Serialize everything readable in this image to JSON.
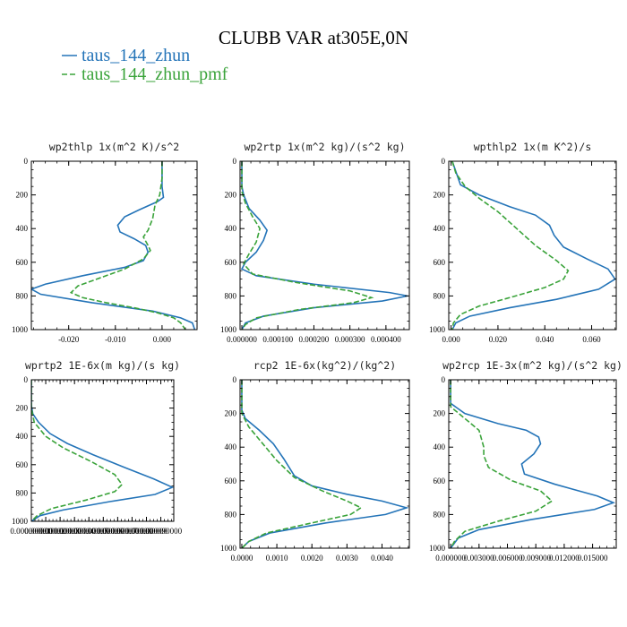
{
  "figure": {
    "title": "CLUBB VAR at305E,0N",
    "legend": [
      {
        "name": "taus_144_zhun",
        "color": "#2474b8"
      },
      {
        "name": "taus_144_zhun_pmf",
        "color": "#3aa33a"
      }
    ]
  },
  "chart_data": [
    {
      "type": "line",
      "title": "wp2thlp   1x(m^2 K)/s^2",
      "xlabel": "",
      "ylabel": "",
      "xlim": [
        -0.028,
        0.0075
      ],
      "ylim": [
        1000,
        0
      ],
      "xticks": [
        -0.02,
        -0.01,
        0.0
      ],
      "xticklabels": [
        "-0.020",
        "-0.010",
        "0.000"
      ],
      "yticks": [
        0,
        200,
        400,
        600,
        800,
        1000
      ],
      "series": [
        {
          "name": "taus_144_zhun",
          "points": [
            [
              0,
              0
            ],
            [
              0,
              60
            ],
            [
              0,
              150
            ],
            [
              0.0003,
              215
            ],
            [
              -0.001,
              240
            ],
            [
              -0.005,
              290
            ],
            [
              -0.008,
              330
            ],
            [
              -0.0095,
              380
            ],
            [
              -0.009,
              420
            ],
            [
              -0.006,
              460
            ],
            [
              -0.0035,
              500
            ],
            [
              -0.003,
              540
            ],
            [
              -0.004,
              590
            ],
            [
              -0.008,
              630
            ],
            [
              -0.017,
              680
            ],
            [
              -0.025,
              730
            ],
            [
              -0.028,
              760
            ],
            [
              -0.026,
              790
            ],
            [
              -0.015,
              840
            ],
            [
              -0.002,
              890
            ],
            [
              0.004,
              930
            ],
            [
              0.0065,
              960
            ],
            [
              0.007,
              1000
            ]
          ]
        },
        {
          "name": "taus_144_zhun_pmf",
          "points": [
            [
              0,
              0
            ],
            [
              0,
              100
            ],
            [
              -0.0005,
              200
            ],
            [
              -0.0015,
              260
            ],
            [
              -0.002,
              340
            ],
            [
              -0.003,
              410
            ],
            [
              -0.004,
              450
            ],
            [
              -0.003,
              500
            ],
            [
              -0.0025,
              530
            ],
            [
              -0.004,
              580
            ],
            [
              -0.008,
              640
            ],
            [
              -0.013,
              690
            ],
            [
              -0.018,
              740
            ],
            [
              -0.0195,
              780
            ],
            [
              -0.017,
              810
            ],
            [
              -0.012,
              840
            ],
            [
              -0.006,
              870
            ],
            [
              -0.001,
              900
            ],
            [
              0.0025,
              930
            ],
            [
              0.004,
              960
            ],
            [
              0.005,
              1000
            ]
          ]
        }
      ]
    },
    {
      "type": "line",
      "title": "wp2rtp   1x(m^2 kg)/(s^2 kg)",
      "xlabel": "",
      "ylabel": "",
      "xlim": [
        -5e-06,
        0.000465
      ],
      "ylim": [
        1000,
        0
      ],
      "xticks": [
        0,
        0.0001,
        0.0002,
        0.0003,
        0.0004
      ],
      "xticklabels": [
        "0.000000",
        "0.000100",
        "0.000200",
        "0.000300",
        "0.000400"
      ],
      "yticks": [
        0,
        200,
        400,
        600,
        800,
        1000
      ],
      "series": [
        {
          "name": "taus_144_zhun",
          "points": [
            [
              0,
              0
            ],
            [
              0,
              150
            ],
            [
              5e-06,
              200
            ],
            [
              2e-05,
              280
            ],
            [
              5e-05,
              350
            ],
            [
              7e-05,
              410
            ],
            [
              6e-05,
              470
            ],
            [
              4e-05,
              540
            ],
            [
              1e-05,
              600
            ],
            [
              0,
              640
            ],
            [
              4e-05,
              680
            ],
            [
              0.0002,
              730
            ],
            [
              0.00041,
              780
            ],
            [
              0.00046,
              800
            ],
            [
              0.00039,
              830
            ],
            [
              0.0002,
              870
            ],
            [
              6e-05,
              920
            ],
            [
              1e-05,
              960
            ],
            [
              0,
              1000
            ]
          ]
        },
        {
          "name": "taus_144_zhun_pmf",
          "points": [
            [
              0,
              0
            ],
            [
              0,
              180
            ],
            [
              1e-05,
              250
            ],
            [
              3e-05,
              330
            ],
            [
              5e-05,
              400
            ],
            [
              4e-05,
              480
            ],
            [
              2e-05,
              550
            ],
            [
              5e-06,
              610
            ],
            [
              3e-05,
              670
            ],
            [
              0.00015,
              720
            ],
            [
              0.0003,
              770
            ],
            [
              0.00036,
              810
            ],
            [
              0.00031,
              840
            ],
            [
              0.00016,
              880
            ],
            [
              4e-05,
              930
            ],
            [
              1e-05,
              970
            ],
            [
              0,
              1000
            ]
          ]
        }
      ]
    },
    {
      "type": "line",
      "title": "wpthlp2   1x(m K^2)/s",
      "xlabel": "",
      "ylabel": "",
      "xlim": [
        -0.001,
        0.0705
      ],
      "ylim": [
        1000,
        0
      ],
      "xticks": [
        0,
        0.02,
        0.04,
        0.06
      ],
      "xticklabels": [
        "0.000",
        "0.020",
        "0.040",
        "0.060"
      ],
      "yticks": [
        0,
        200,
        400,
        600,
        800,
        1000
      ],
      "series": [
        {
          "name": "taus_144_zhun",
          "points": [
            [
              0.0005,
              0
            ],
            [
              0.002,
              60
            ],
            [
              0.004,
              140
            ],
            [
              0.012,
              200
            ],
            [
              0.025,
              270
            ],
            [
              0.036,
              320
            ],
            [
              0.042,
              380
            ],
            [
              0.044,
              440
            ],
            [
              0.048,
              510
            ],
            [
              0.058,
              580
            ],
            [
              0.067,
              640
            ],
            [
              0.07,
              700
            ],
            [
              0.063,
              760
            ],
            [
              0.045,
              820
            ],
            [
              0.025,
              870
            ],
            [
              0.008,
              920
            ],
            [
              0.002,
              960
            ],
            [
              0.0005,
              1000
            ]
          ]
        },
        {
          "name": "taus_144_zhun_pmf",
          "points": [
            [
              0.0005,
              0
            ],
            [
              0.002,
              70
            ],
            [
              0.006,
              150
            ],
            [
              0.012,
              220
            ],
            [
              0.02,
              300
            ],
            [
              0.028,
              400
            ],
            [
              0.036,
              500
            ],
            [
              0.045,
              590
            ],
            [
              0.05,
              650
            ],
            [
              0.048,
              700
            ],
            [
              0.04,
              750
            ],
            [
              0.025,
              810
            ],
            [
              0.012,
              860
            ],
            [
              0.004,
              910
            ],
            [
              0.001,
              960
            ],
            [
              0.0005,
              1000
            ]
          ]
        }
      ]
    },
    {
      "type": "line",
      "title": "wprtp2   1E-6x(m kg)/(s kg)",
      "xlabel": "",
      "ylabel": "",
      "xlim": [
        0,
        9.9e-05
      ],
      "ylim": [
        1000,
        0
      ],
      "xticks": [
        0,
        1e-05,
        2e-05,
        3e-05,
        4e-05,
        5e-05,
        6e-05,
        7e-05,
        8e-05,
        9e-05
      ],
      "xticklabels": [
        "0.000000000",
        "0.000010000",
        "0.000020000",
        "0.000030000",
        "0.000040000",
        "0.000050000",
        "0.000060000",
        "0.000070000",
        "0.000080000",
        "0.000090000"
      ],
      "yticks": [
        0,
        200,
        400,
        600,
        800,
        1000
      ],
      "series": [
        {
          "name": "taus_144_zhun",
          "points": [
            [
              0,
              0
            ],
            [
              0,
              180
            ],
            [
              1e-06,
              240
            ],
            [
              5e-06,
              300
            ],
            [
              1.3e-05,
              380
            ],
            [
              2.5e-05,
              450
            ],
            [
              4.3e-05,
              530
            ],
            [
              6.5e-05,
              620
            ],
            [
              8.5e-05,
              700
            ],
            [
              9.8e-05,
              760
            ],
            [
              8.6e-05,
              810
            ],
            [
              5.5e-05,
              860
            ],
            [
              2.2e-05,
              920
            ],
            [
              6e-06,
              960
            ],
            [
              0,
              1000
            ]
          ]
        },
        {
          "name": "taus_144_zhun_pmf",
          "points": [
            [
              0,
              0
            ],
            [
              0,
              200
            ],
            [
              2e-06,
              300
            ],
            [
              1e-05,
              400
            ],
            [
              2.2e-05,
              480
            ],
            [
              4.2e-05,
              580
            ],
            [
              5.8e-05,
              670
            ],
            [
              6.3e-05,
              740
            ],
            [
              5.8e-05,
              790
            ],
            [
              3.8e-05,
              850
            ],
            [
              1.4e-05,
              910
            ],
            [
              4e-06,
              960
            ],
            [
              0,
              1000
            ]
          ]
        }
      ]
    },
    {
      "type": "line",
      "title": "rcp2   1E-6x(kg^2)/(kg^2)",
      "xlabel": "",
      "ylabel": "",
      "xlim": [
        -5e-05,
        0.00478
      ],
      "ylim": [
        1000,
        0
      ],
      "xticks": [
        0,
        0.001,
        0.002,
        0.003,
        0.004
      ],
      "xticklabels": [
        "0.0000",
        "0.0010",
        "0.0020",
        "0.0030",
        "0.0040"
      ],
      "yticks": [
        0,
        200,
        400,
        600,
        800,
        1000
      ],
      "series": [
        {
          "name": "taus_144_zhun",
          "points": [
            [
              0,
              0
            ],
            [
              0,
              180
            ],
            [
              0.0001,
              230
            ],
            [
              0.0005,
              300
            ],
            [
              0.0009,
              380
            ],
            [
              0.0012,
              470
            ],
            [
              0.0015,
              570
            ],
            [
              0.002,
              630
            ],
            [
              0.003,
              680
            ],
            [
              0.004,
              720
            ],
            [
              0.0047,
              760
            ],
            [
              0.0041,
              800
            ],
            [
              0.0024,
              850
            ],
            [
              0.0008,
              910
            ],
            [
              0.0002,
              960
            ],
            [
              0,
              1000
            ]
          ]
        },
        {
          "name": "taus_144_zhun_pmf",
          "points": [
            [
              0,
              0
            ],
            [
              0,
              200
            ],
            [
              0.0002,
              280
            ],
            [
              0.0006,
              380
            ],
            [
              0.001,
              480
            ],
            [
              0.0015,
              580
            ],
            [
              0.0023,
              660
            ],
            [
              0.003,
              720
            ],
            [
              0.0034,
              760
            ],
            [
              0.0031,
              800
            ],
            [
              0.002,
              850
            ],
            [
              0.0007,
              910
            ],
            [
              0.0002,
              960
            ],
            [
              0,
              1000
            ]
          ]
        }
      ]
    },
    {
      "type": "line",
      "title": "wp2rcp   1E-3x(m^2 kg)/(s^2 kg)",
      "xlabel": "",
      "ylabel": "",
      "xlim": [
        -0.0002,
        0.0175
      ],
      "ylim": [
        1000,
        0
      ],
      "xticks": [
        0,
        0.003,
        0.006,
        0.009,
        0.012,
        0.015
      ],
      "xticklabels": [
        "0.000000",
        "0.003000",
        "0.006000",
        "0.009000",
        "0.012000",
        "0.015000"
      ],
      "yticks": [
        0,
        200,
        400,
        600,
        800,
        1000
      ],
      "series": [
        {
          "name": "taus_144_zhun",
          "points": [
            [
              0,
              0
            ],
            [
              0,
              140
            ],
            [
              0.0015,
              200
            ],
            [
              0.005,
              260
            ],
            [
              0.008,
              300
            ],
            [
              0.0093,
              340
            ],
            [
              0.0095,
              380
            ],
            [
              0.0088,
              440
            ],
            [
              0.0075,
              500
            ],
            [
              0.0078,
              560
            ],
            [
              0.011,
              620
            ],
            [
              0.0155,
              690
            ],
            [
              0.0172,
              730
            ],
            [
              0.0152,
              770
            ],
            [
              0.0085,
              830
            ],
            [
              0.003,
              890
            ],
            [
              0.0008,
              940
            ],
            [
              0,
              1000
            ]
          ]
        },
        {
          "name": "taus_144_zhun_pmf",
          "points": [
            [
              0,
              0
            ],
            [
              0,
              160
            ],
            [
              0.0015,
              230
            ],
            [
              0.003,
              300
            ],
            [
              0.0035,
              400
            ],
            [
              0.0035,
              450
            ],
            [
              0.004,
              520
            ],
            [
              0.0065,
              600
            ],
            [
              0.0095,
              660
            ],
            [
              0.0107,
              720
            ],
            [
              0.009,
              780
            ],
            [
              0.005,
              840
            ],
            [
              0.0015,
              900
            ],
            [
              0.0004,
              960
            ],
            [
              0,
              1000
            ]
          ]
        }
      ]
    }
  ]
}
